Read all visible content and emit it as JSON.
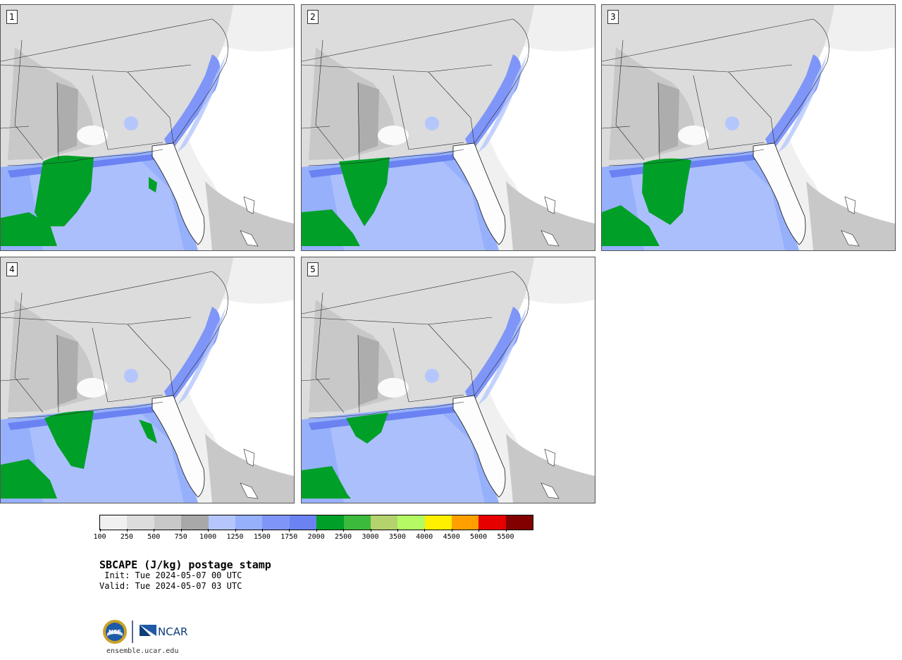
{
  "panels": [
    {
      "label": "1"
    },
    {
      "label": "2"
    },
    {
      "label": "3"
    },
    {
      "label": "4"
    },
    {
      "label": "5"
    }
  ],
  "colorbar": {
    "colors": [
      "#f0f0f0",
      "#dcdcdc",
      "#c8c8c8",
      "#a8a8a8",
      "#b4c6fc",
      "#96b0fc",
      "#7f96f8",
      "#6a82f2",
      "#00a028",
      "#3cba3c",
      "#b4d26e",
      "#b4fa64",
      "#fff000",
      "#ffa000",
      "#e60000",
      "#820000"
    ],
    "ticks": [
      "100",
      "250",
      "500",
      "750",
      "1000",
      "1250",
      "1500",
      "1750",
      "2000",
      "2500",
      "3000",
      "3500",
      "4000",
      "4500",
      "5000",
      "5500"
    ]
  },
  "title": "SBCAPE (J/kg) postage stamp",
  "init": " Init: Tue 2024-05-07 00 UTC",
  "valid": "Valid: Tue 2024-05-07 03 UTC",
  "logo": {
    "nsf": "NSF",
    "ncar": "NCAR"
  },
  "footer": "ensemble.ucar.edu"
}
